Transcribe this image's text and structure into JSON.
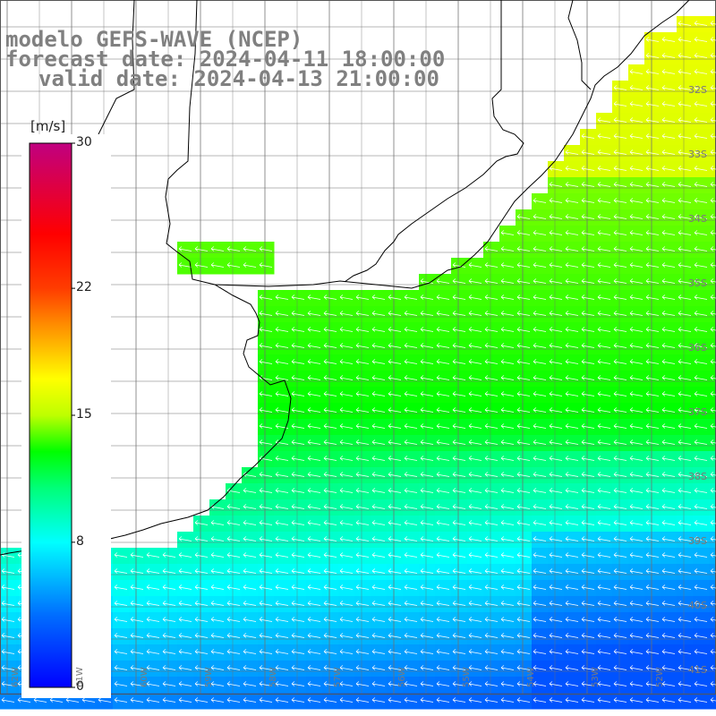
{
  "title": {
    "line1": "modelo GEFS-WAVE (NCEP)",
    "line2": "forecast date: 2024-04-11 18:00:00",
    "line3": "valid date: 2024-04-13 21:00:00"
  },
  "colorbar": {
    "unit": "[m/s]",
    "ticks": [
      "30",
      "22",
      "15",
      "8",
      "0"
    ],
    "min": 0,
    "max": 30,
    "colors": [
      "#0000ff",
      "#0088ff",
      "#00ffff",
      "#00ff66",
      "#00ff00",
      "#ffff00",
      "#ff8800",
      "#ff0000",
      "#ff0088",
      "#c00080"
    ]
  },
  "lat_labels": [
    "32S",
    "33S",
    "34S",
    "35S",
    "36S",
    "37S",
    "38S",
    "39S",
    "40S",
    "41S"
  ],
  "lon_labels": [
    "62W",
    "61W",
    "60W",
    "59W",
    "58W",
    "57W",
    "56W",
    "55W",
    "54W",
    "53W",
    "52W",
    "51W"
  ],
  "field": {
    "variable": "wind speed",
    "direction": "mostly from the east (arrows pointing west)",
    "regions": [
      {
        "area": "north-east near 32-33S",
        "speed_range": "15-17 m/s"
      },
      {
        "area": "central shelf 34-37S",
        "speed_range": "12-15 m/s"
      },
      {
        "area": "south 38-41S",
        "speed_range": "4-9 m/s"
      }
    ]
  }
}
